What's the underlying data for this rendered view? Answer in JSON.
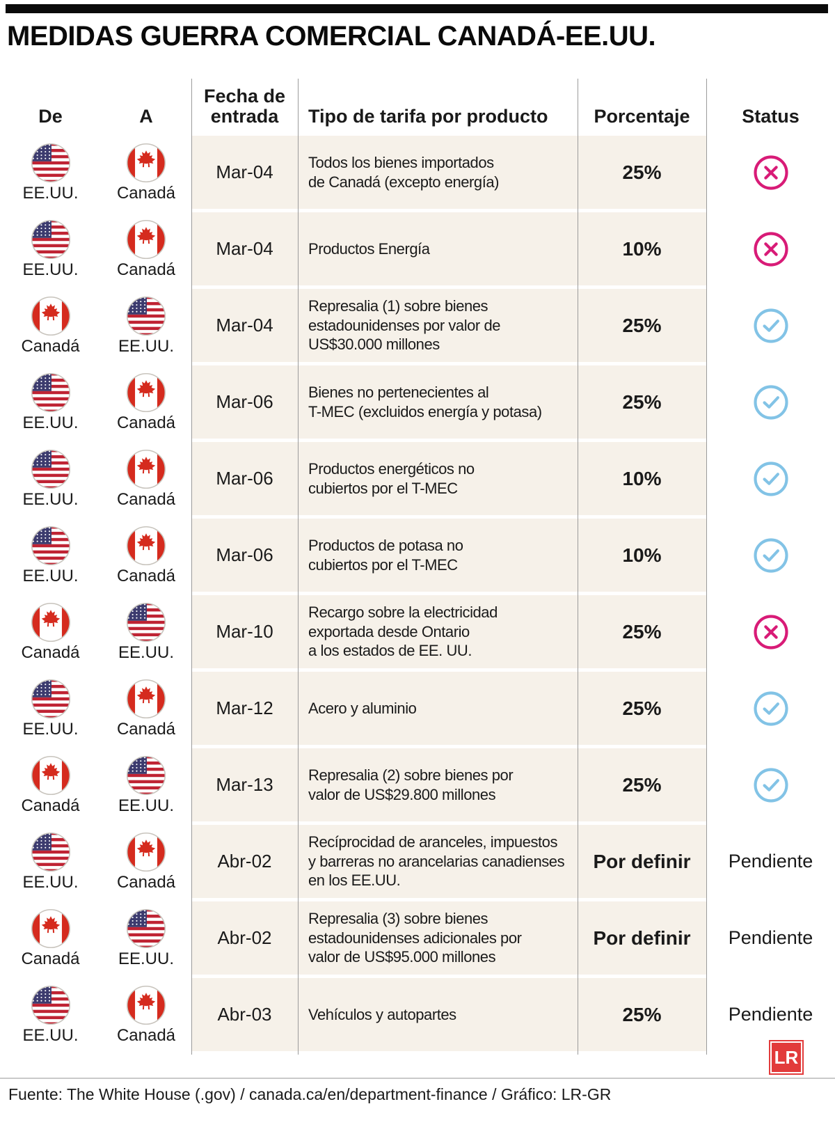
{
  "title": "MEDIDAS GUERRA COMERCIAL CANADÁ-EE.UU.",
  "columns": {
    "from": "De",
    "to": "A",
    "date": "Fecha de entrada",
    "product": "Tipo de tarifa por producto",
    "percent": "Porcentaje",
    "status": "Status"
  },
  "countries": {
    "us": "EE.UU.",
    "ca": "Canadá"
  },
  "labels": {
    "pending": "Pendiente"
  },
  "colors": {
    "cross": "#d81b77",
    "check": "#82c3e6",
    "row_bg": "#f6f1e9",
    "canada_red": "#d52b1e",
    "us_blue": "#3c3b6e",
    "us_red": "#bf2333",
    "logo_red": "#e23b3b"
  },
  "rows": [
    {
      "from": "us",
      "to": "ca",
      "date": "Mar-04",
      "product": "Todos los bienes importados\nde Canadá (excepto energía)",
      "percent": "25%",
      "status": "cancelled"
    },
    {
      "from": "us",
      "to": "ca",
      "date": "Mar-04",
      "product": "Productos Energía",
      "percent": "10%",
      "status": "cancelled"
    },
    {
      "from": "ca",
      "to": "us",
      "date": "Mar-04",
      "product": "Represalia (1) sobre bienes\nestadounidenses por valor de\nUS$30.000 millones",
      "percent": "25%",
      "status": "active"
    },
    {
      "from": "us",
      "to": "ca",
      "date": "Mar-06",
      "product": "Bienes no pertenecientes al\nT-MEC (excluidos energía y potasa)",
      "percent": "25%",
      "status": "active"
    },
    {
      "from": "us",
      "to": "ca",
      "date": "Mar-06",
      "product": "Productos energéticos no\ncubiertos por el T-MEC",
      "percent": "10%",
      "status": "active"
    },
    {
      "from": "us",
      "to": "ca",
      "date": "Mar-06",
      "product": "Productos de potasa no\ncubiertos por el T-MEC",
      "percent": "10%",
      "status": "active"
    },
    {
      "from": "ca",
      "to": "us",
      "date": "Mar-10",
      "product": "Recargo sobre la electricidad\nexportada desde Ontario\na los estados de EE. UU.",
      "percent": "25%",
      "status": "cancelled"
    },
    {
      "from": "us",
      "to": "ca",
      "date": "Mar-12",
      "product": "Acero y aluminio",
      "percent": "25%",
      "status": "active"
    },
    {
      "from": "ca",
      "to": "us",
      "date": "Mar-13",
      "product": "Represalia (2) sobre bienes por\nvalor de US$29.800 millones",
      "percent": "25%",
      "status": "active"
    },
    {
      "from": "us",
      "to": "ca",
      "date": "Abr-02",
      "product": "Recíprocidad de aranceles, impuestos\ny barreras no arancelarias canadienses\nen los EE.UU.",
      "percent": "Por definir",
      "status": "pending"
    },
    {
      "from": "ca",
      "to": "us",
      "date": "Abr-02",
      "product": "Represalia (3) sobre bienes\nestadounidenses adicionales por\nvalor de US$95.000 millones",
      "percent": "Por definir",
      "status": "pending"
    },
    {
      "from": "us",
      "to": "ca",
      "date": "Abr-03",
      "product": "Vehículos y autopartes",
      "percent": "25%",
      "status": "pending"
    }
  ],
  "footer": "Fuente: The White House (.gov) / canada.ca/en/department-finance / Gráfico: LR-GR",
  "logo": "LR",
  "chart_data": {
    "type": "table",
    "title": "MEDIDAS GUERRA COMERCIAL CANADÁ-EE.UU.",
    "columns": [
      "De",
      "A",
      "Fecha de entrada",
      "Tipo de tarifa por producto",
      "Porcentaje",
      "Status"
    ],
    "rows": [
      [
        "EE.UU.",
        "Canadá",
        "Mar-04",
        "Todos los bienes importados de Canadá (excepto energía)",
        "25%",
        "cancelado"
      ],
      [
        "EE.UU.",
        "Canadá",
        "Mar-04",
        "Productos Energía",
        "10%",
        "cancelado"
      ],
      [
        "Canadá",
        "EE.UU.",
        "Mar-04",
        "Represalia (1) sobre bienes estadounidenses por valor de US$30.000 millones",
        "25%",
        "vigente"
      ],
      [
        "EE.UU.",
        "Canadá",
        "Mar-06",
        "Bienes no pertenecientes al T-MEC (excluidos energía y potasa)",
        "25%",
        "vigente"
      ],
      [
        "EE.UU.",
        "Canadá",
        "Mar-06",
        "Productos energéticos no cubiertos por el T-MEC",
        "10%",
        "vigente"
      ],
      [
        "EE.UU.",
        "Canadá",
        "Mar-06",
        "Productos de potasa no cubiertos por el T-MEC",
        "10%",
        "vigente"
      ],
      [
        "Canadá",
        "EE.UU.",
        "Mar-10",
        "Recargo sobre la electricidad exportada desde Ontario a los estados de EE. UU.",
        "25%",
        "cancelado"
      ],
      [
        "EE.UU.",
        "Canadá",
        "Mar-12",
        "Acero y aluminio",
        "25%",
        "vigente"
      ],
      [
        "Canadá",
        "EE.UU.",
        "Mar-13",
        "Represalia (2) sobre bienes por valor de US$29.800 millones",
        "25%",
        "vigente"
      ],
      [
        "EE.UU.",
        "Canadá",
        "Abr-02",
        "Recíprocidad de aranceles, impuestos y barreras no arancelarias canadienses en los EE.UU.",
        "Por definir",
        "Pendiente"
      ],
      [
        "Canadá",
        "EE.UU.",
        "Abr-02",
        "Represalia (3) sobre bienes estadounidenses adicionales por valor de US$95.000 millones",
        "Por definir",
        "Pendiente"
      ],
      [
        "EE.UU.",
        "Canadá",
        "Abr-03",
        "Vehículos y autopartes",
        "25%",
        "Pendiente"
      ]
    ]
  }
}
